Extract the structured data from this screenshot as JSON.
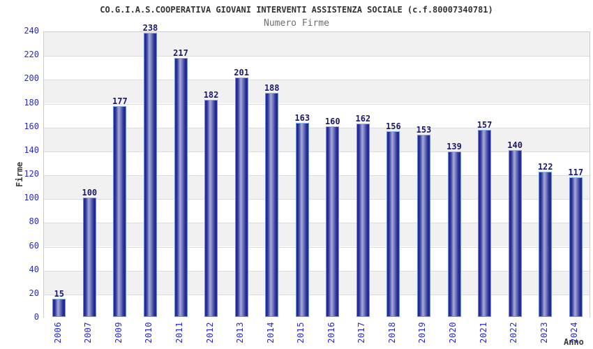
{
  "chart_data": {
    "type": "bar",
    "title": "CO.G.I.A.S.COOPERATIVA GIOVANI INTERVENTI ASSISTENZA SOCIALE (c.f.80007340781)",
    "subtitle": "Numero Firme",
    "xlabel": "Anno",
    "ylabel": "Firme",
    "categories": [
      "2006",
      "2007",
      "2009",
      "2010",
      "2011",
      "2012",
      "2013",
      "2014",
      "2015",
      "2016",
      "2017",
      "2018",
      "2019",
      "2020",
      "2021",
      "2022",
      "2023",
      "2024"
    ],
    "values": [
      15,
      100,
      177,
      238,
      217,
      182,
      201,
      188,
      163,
      160,
      162,
      156,
      153,
      139,
      157,
      140,
      122,
      117
    ],
    "ylim": [
      0,
      240
    ],
    "ytick_step": 20,
    "legend": "none",
    "grid": "horizontal gridlines every 20 with alternating gray/white bands, gray band at top",
    "colors": {
      "bar_edge": "#6790e0",
      "bar_dark": "#1f1f8e",
      "bar_light": "#a6acd8",
      "tick_label": "#2929cc",
      "value_label": "#191970",
      "band_gray": "#f1f1f1",
      "grid_line": "#dcdcdc",
      "plot_border": "#cccccc",
      "title_color": "#333333",
      "subtitle_color": "#6e6e6e",
      "axis_title_color": "#3a3a3a"
    }
  }
}
